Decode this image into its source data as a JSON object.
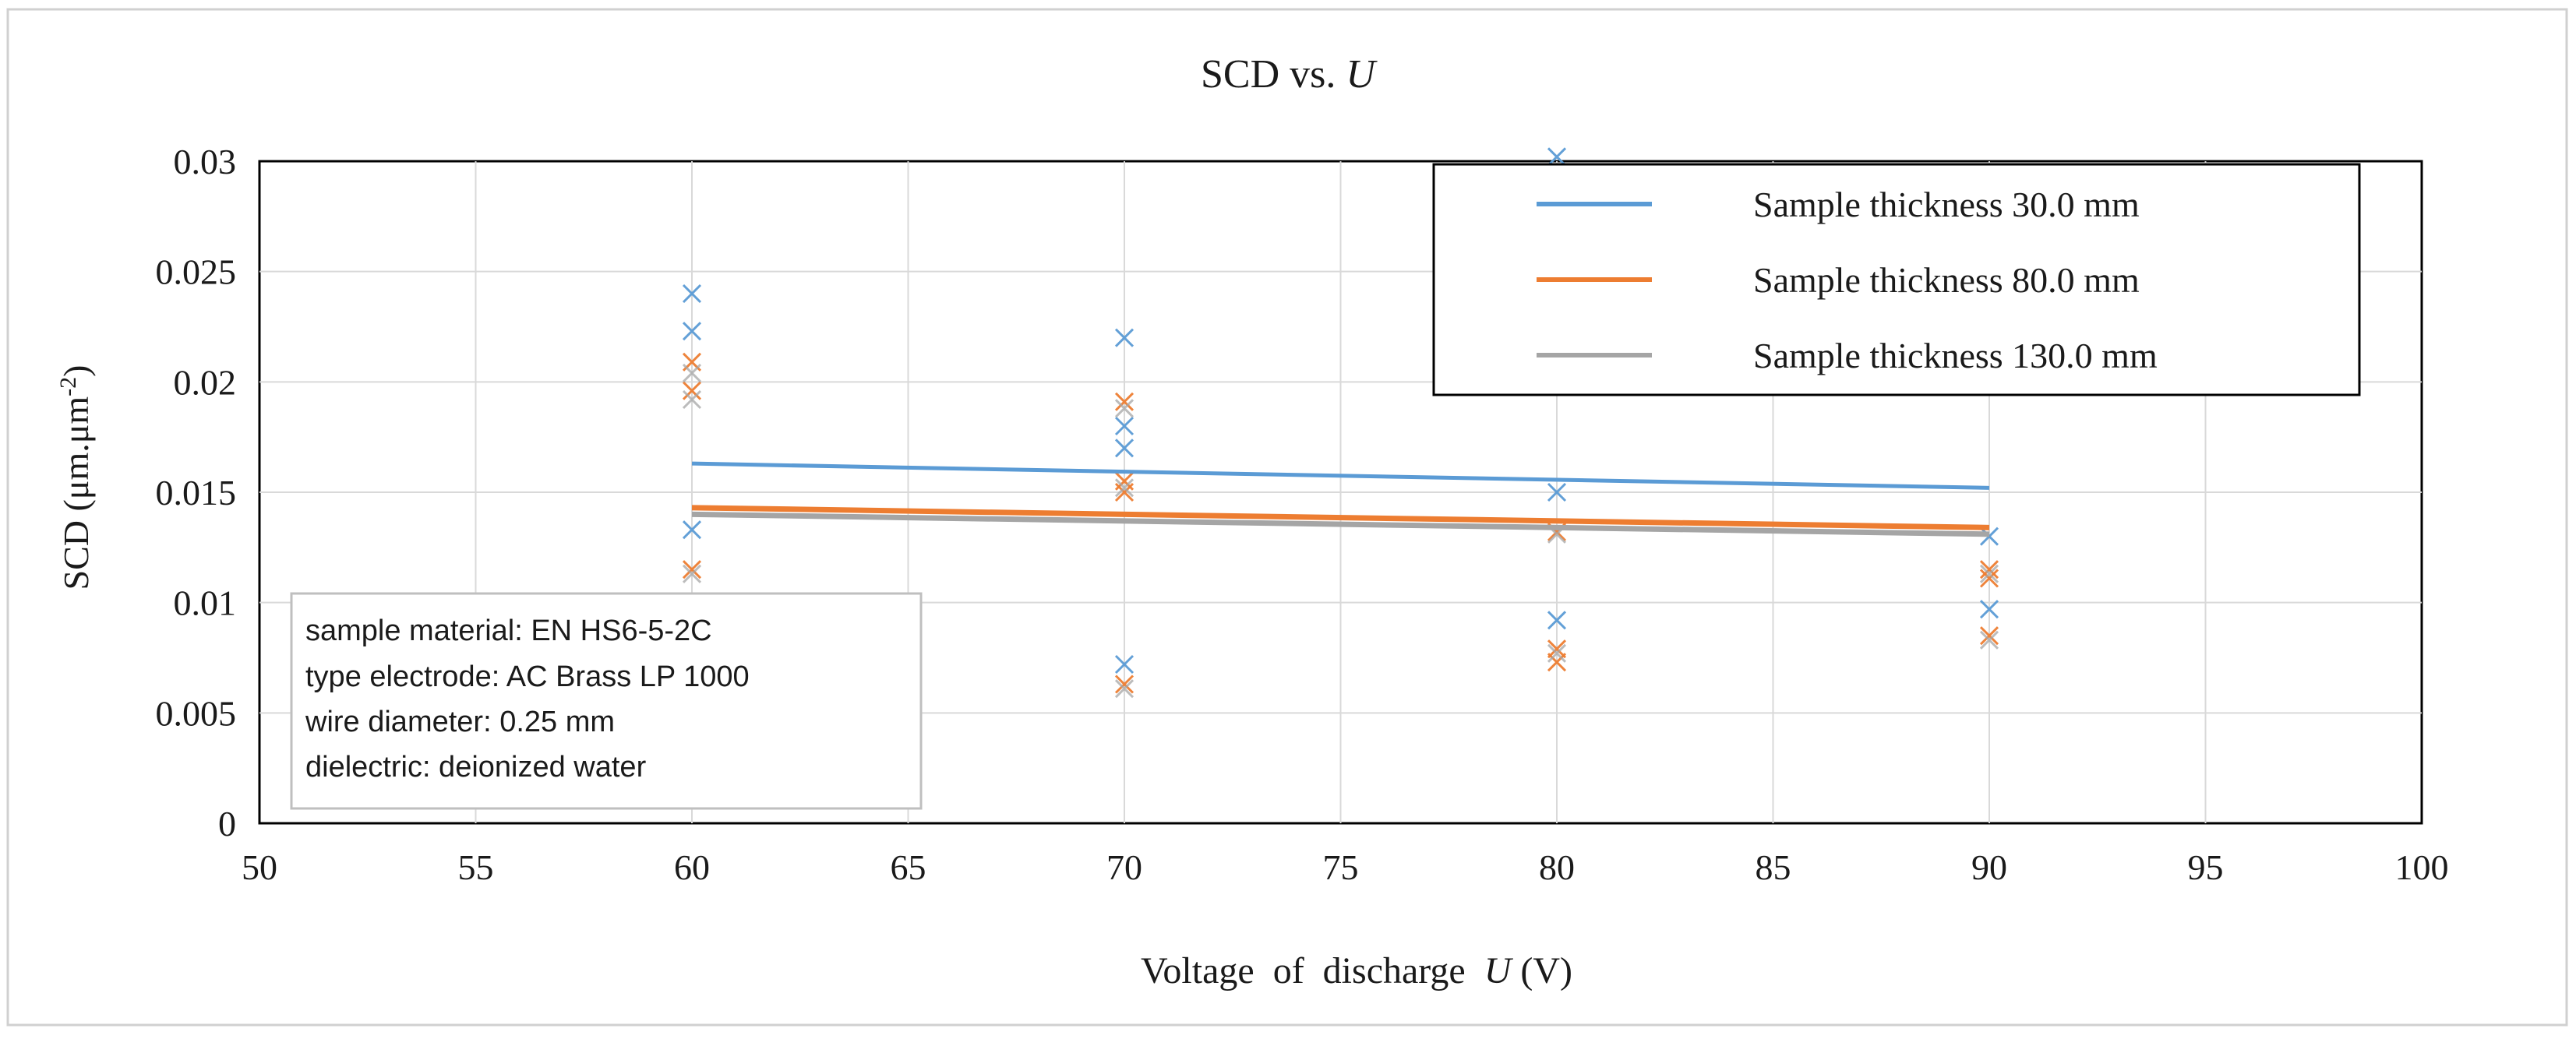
{
  "chart_data": {
    "type": "scatter",
    "title": "SCD vs. ",
    "title_var": "U",
    "xlabel_prefix": "Voltage  of  discharge  ",
    "xlabel_var": "U",
    "xlabel_suffix": " (V)",
    "ylabel_main": "SCD (μm.μm",
    "ylabel_sup": "-2",
    "ylabel_close": ")",
    "xlim": [
      50,
      100
    ],
    "ylim": [
      0,
      0.03
    ],
    "x_ticks": [
      50,
      55,
      60,
      65,
      70,
      75,
      80,
      85,
      90,
      95,
      100
    ],
    "y_ticks": [
      0,
      0.005,
      0.01,
      0.015,
      0.02,
      0.025,
      0.03
    ],
    "x_tick_labels": [
      "50",
      "55",
      "60",
      "65",
      "70",
      "75",
      "80",
      "85",
      "90",
      "95",
      "100"
    ],
    "y_tick_labels": [
      "0",
      "0.005",
      "0.01",
      "0.015",
      "0.02",
      "0.025",
      "0.03"
    ],
    "grid": true,
    "legend_position": "top-right",
    "series": [
      {
        "name": "Sample thickness 30.0 mm",
        "color": "#5b9bd5",
        "points": [
          {
            "x": 60,
            "y": 0.024
          },
          {
            "x": 60,
            "y": 0.0223
          },
          {
            "x": 60,
            "y": 0.0133
          },
          {
            "x": 70,
            "y": 0.022
          },
          {
            "x": 70,
            "y": 0.018
          },
          {
            "x": 70,
            "y": 0.017
          },
          {
            "x": 70,
            "y": 0.0072
          },
          {
            "x": 80,
            "y": 0.0302
          },
          {
            "x": 80,
            "y": 0.015
          },
          {
            "x": 80,
            "y": 0.0092
          },
          {
            "x": 90,
            "y": 0.013
          },
          {
            "x": 90,
            "y": 0.0097
          }
        ],
        "trend": {
          "x": [
            60,
            90
          ],
          "y": [
            0.0163,
            0.0152
          ]
        }
      },
      {
        "name": "Sample thickness 80.0 mm",
        "color": "#ed7d31",
        "points": [
          {
            "x": 60,
            "y": 0.0209
          },
          {
            "x": 60,
            "y": 0.0196
          },
          {
            "x": 60,
            "y": 0.0115
          },
          {
            "x": 70,
            "y": 0.0191
          },
          {
            "x": 70,
            "y": 0.0155
          },
          {
            "x": 70,
            "y": 0.015
          },
          {
            "x": 70,
            "y": 0.0063
          },
          {
            "x": 80,
            "y": 0.0132
          },
          {
            "x": 80,
            "y": 0.0079
          },
          {
            "x": 80,
            "y": 0.0073
          },
          {
            "x": 90,
            "y": 0.0115
          },
          {
            "x": 90,
            "y": 0.0111
          },
          {
            "x": 90,
            "y": 0.0085
          }
        ],
        "trend": {
          "x": [
            60,
            90
          ],
          "y": [
            0.0143,
            0.0134
          ]
        }
      },
      {
        "name": "Sample thickness 130.0 mm",
        "color": "#a5a5a5",
        "points": [
          {
            "x": 60,
            "y": 0.0204
          },
          {
            "x": 60,
            "y": 0.0192
          },
          {
            "x": 60,
            "y": 0.0113
          },
          {
            "x": 70,
            "y": 0.0188
          },
          {
            "x": 70,
            "y": 0.0152
          },
          {
            "x": 70,
            "y": 0.0061
          },
          {
            "x": 80,
            "y": 0.0131
          },
          {
            "x": 80,
            "y": 0.0077
          },
          {
            "x": 90,
            "y": 0.0113
          },
          {
            "x": 90,
            "y": 0.0083
          }
        ],
        "trend": {
          "x": [
            60,
            90
          ],
          "y": [
            0.014,
            0.0131
          ]
        }
      }
    ],
    "annotation": [
      "sample material: EN HS6-5-2C",
      "type electrode: AC Brass LP 1000",
      "wire diameter: 0.25 mm",
      "dielectric: deionized water"
    ]
  }
}
